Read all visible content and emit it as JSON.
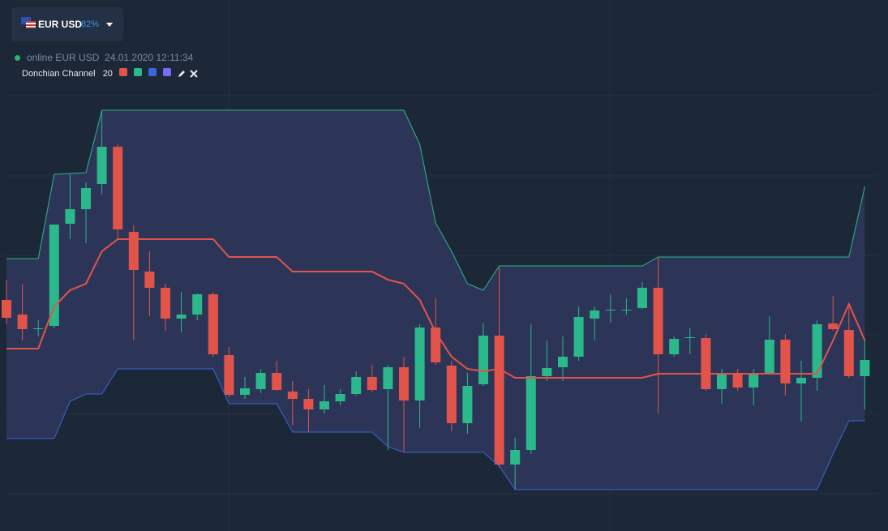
{
  "header": {
    "symbol": "EUR USD",
    "payout": "82%",
    "status": "online EUR USD",
    "timestamp": "24.01.2020 12:11:34"
  },
  "indicator": {
    "name": "Donchian Channel",
    "period": "20",
    "colors": [
      "#e2544a",
      "#2bb88a",
      "#3a66d8",
      "#7a6cf0"
    ]
  },
  "chart_data": {
    "type": "candlestick",
    "ylim": [
      0,
      655
    ],
    "up_color": "#2bb88a",
    "down_color": "#e2544a",
    "ohlc": [
      [
        285,
        310,
        255,
        263
      ],
      [
        267,
        305,
        235,
        249
      ],
      [
        249,
        260,
        240,
        250
      ],
      [
        253,
        378,
        250,
        378
      ],
      [
        379,
        440,
        360,
        397
      ],
      [
        397,
        430,
        355,
        423
      ],
      [
        428,
        519,
        415,
        474
      ],
      [
        474,
        477,
        360,
        372
      ],
      [
        369,
        377,
        235,
        322
      ],
      [
        320,
        345,
        265,
        300
      ],
      [
        300,
        305,
        247,
        262
      ],
      [
        262,
        295,
        245,
        267
      ],
      [
        267,
        293,
        260,
        292
      ],
      [
        292,
        295,
        215,
        218
      ],
      [
        217,
        227,
        165,
        168
      ],
      [
        168,
        190,
        163,
        176
      ],
      [
        175,
        200,
        170,
        195
      ],
      [
        195,
        210,
        173,
        174
      ],
      [
        172,
        185,
        130,
        163
      ],
      [
        163,
        175,
        122,
        150
      ],
      [
        150,
        180,
        145,
        160
      ],
      [
        160,
        175,
        155,
        169
      ],
      [
        169,
        197,
        167,
        190
      ],
      [
        190,
        205,
        171,
        174
      ],
      [
        175,
        205,
        100,
        202
      ],
      [
        202,
        215,
        98,
        161
      ],
      [
        161,
        255,
        127,
        251
      ],
      [
        251,
        287,
        205,
        208
      ],
      [
        204,
        210,
        123,
        133
      ],
      [
        133,
        195,
        120,
        179
      ],
      [
        181,
        257,
        179,
        241
      ],
      [
        241,
        325,
        78,
        82
      ],
      [
        82,
        115,
        51,
        100
      ],
      [
        100,
        255,
        95,
        191
      ],
      [
        191,
        235,
        185,
        201
      ],
      [
        202,
        240,
        185,
        215
      ],
      [
        215,
        277,
        210,
        264
      ],
      [
        262,
        277,
        235,
        272
      ],
      [
        273,
        292,
        257,
        273
      ],
      [
        273,
        287,
        267,
        273
      ],
      [
        275,
        307,
        273,
        300
      ],
      [
        300,
        337,
        145,
        218
      ],
      [
        218,
        240,
        215,
        237
      ],
      [
        239,
        250,
        218,
        239
      ],
      [
        238,
        243,
        173,
        175
      ],
      [
        175,
        200,
        157,
        195
      ],
      [
        195,
        200,
        173,
        177
      ],
      [
        177,
        200,
        155,
        193
      ],
      [
        195,
        265,
        193,
        236
      ],
      [
        236,
        243,
        167,
        182
      ],
      [
        182,
        210,
        135,
        189
      ],
      [
        189,
        260,
        173,
        255
      ],
      [
        256,
        290,
        247,
        249
      ],
      [
        248,
        280,
        189,
        191
      ],
      [
        191,
        237,
        150,
        211
      ]
    ],
    "channel": {
      "fill": "#2c3558",
      "upper": {
        "color": "#2bb88a",
        "values": [
          336,
          336,
          336,
          440,
          441,
          442,
          519,
          519,
          519,
          519,
          519,
          519,
          519,
          519,
          519,
          519,
          519,
          519,
          519,
          519,
          519,
          519,
          519,
          519,
          519,
          519,
          477,
          380,
          345,
          305,
          297,
          327,
          327,
          327,
          327,
          327,
          327,
          327,
          327,
          327,
          327,
          338,
          338,
          338,
          338,
          338,
          338,
          338,
          338,
          338,
          338,
          338,
          338,
          338,
          425
        ]
      },
      "middle": {
        "color": "#e2544a",
        "values": [
          225,
          225,
          225,
          277,
          297,
          305,
          345,
          360,
          360,
          360,
          360,
          360,
          360,
          360,
          338,
          338,
          338,
          338,
          320,
          320,
          320,
          320,
          320,
          320,
          310,
          305,
          285,
          245,
          215,
          200,
          197,
          200,
          189,
          189,
          189,
          189,
          189,
          189,
          189,
          189,
          189,
          194,
          194,
          194,
          194,
          194,
          194,
          194,
          194,
          194,
          194,
          194,
          235,
          280,
          235
        ]
      },
      "lower": {
        "color": "#3a66d8",
        "values": [
          114,
          114,
          114,
          114,
          160,
          169,
          169,
          200,
          200,
          200,
          200,
          200,
          200,
          200,
          157,
          157,
          157,
          157,
          122,
          122,
          122,
          122,
          122,
          122,
          104,
          97,
          97,
          97,
          97,
          97,
          97,
          80,
          51,
          51,
          51,
          51,
          51,
          51,
          51,
          51,
          51,
          51,
          51,
          51,
          51,
          51,
          51,
          51,
          51,
          51,
          51,
          51,
          95,
          136,
          136
        ]
      }
    }
  }
}
